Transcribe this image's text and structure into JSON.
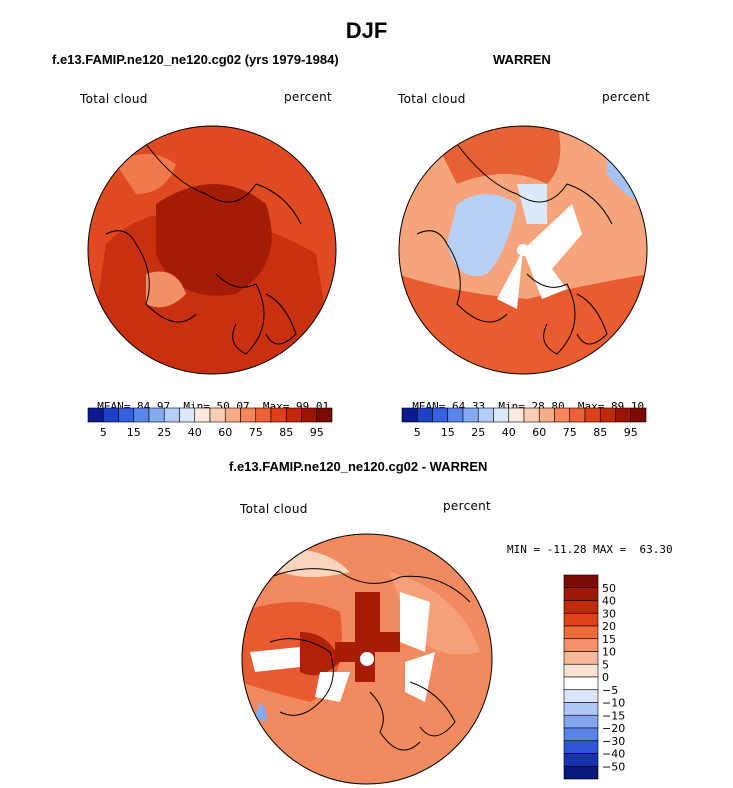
{
  "title": "DJF",
  "panels": [
    {
      "id": "model",
      "subtitle": "f.e13.FAMIP.ne120_ne120.cg02 (yrs 1979-1984)",
      "left_label": "Total cloud",
      "right_label": "percent",
      "stats": {
        "mean_label": "MEAN=",
        "mean": "84.97",
        "min_label": "Min=",
        "min": "50.07",
        "max_label": "Max=",
        "max": "99.01"
      },
      "colorbar_ticks": [
        "5",
        "15",
        "25",
        "40",
        "60",
        "75",
        "85",
        "95"
      ]
    },
    {
      "id": "obs",
      "subtitle": "WARREN",
      "left_label": "Total cloud",
      "right_label": "percent",
      "stats": {
        "mean_label": "MEAN=",
        "mean": "64.33",
        "min_label": "Min=",
        "min": "28.80",
        "max_label": "Max=",
        "max": "89.10"
      },
      "colorbar_ticks": [
        "5",
        "15",
        "25",
        "40",
        "60",
        "75",
        "85",
        "95"
      ]
    },
    {
      "id": "diff",
      "subtitle": "f.e13.FAMIP.ne120_ne120.cg02 - WARREN",
      "left_label": "Total cloud",
      "right_label": "percent",
      "minmax": "MIN = -11.28 MAX =  63.30",
      "colorbar_ticks": [
        "50",
        "40",
        "30",
        "20",
        "15",
        "10",
        "5",
        "0",
        "−5",
        "−10",
        "−15",
        "−20",
        "−30",
        "−40",
        "−50"
      ]
    }
  ],
  "colors": {
    "seq_scale": [
      "#0a1a8c",
      "#1e3fc8",
      "#3560e0",
      "#5a86ec",
      "#86aaf2",
      "#b4cef8",
      "#dce9fb",
      "#fde9dc",
      "#fbcdb4",
      "#f8ab87",
      "#f4865c",
      "#ee6238",
      "#e04018",
      "#c42808",
      "#9a1404",
      "#7a0a02"
    ],
    "div_scale": [
      "#7a0a02",
      "#a01806",
      "#c02a08",
      "#e04218",
      "#f06a3c",
      "#f6926a",
      "#f9b898",
      "#fde2d2",
      "#ffffff",
      "#dbe6fb",
      "#b0c8f6",
      "#84a6f0",
      "#5a82ea",
      "#2f54d8",
      "#1633b0",
      "#0a1a7a"
    ]
  }
}
